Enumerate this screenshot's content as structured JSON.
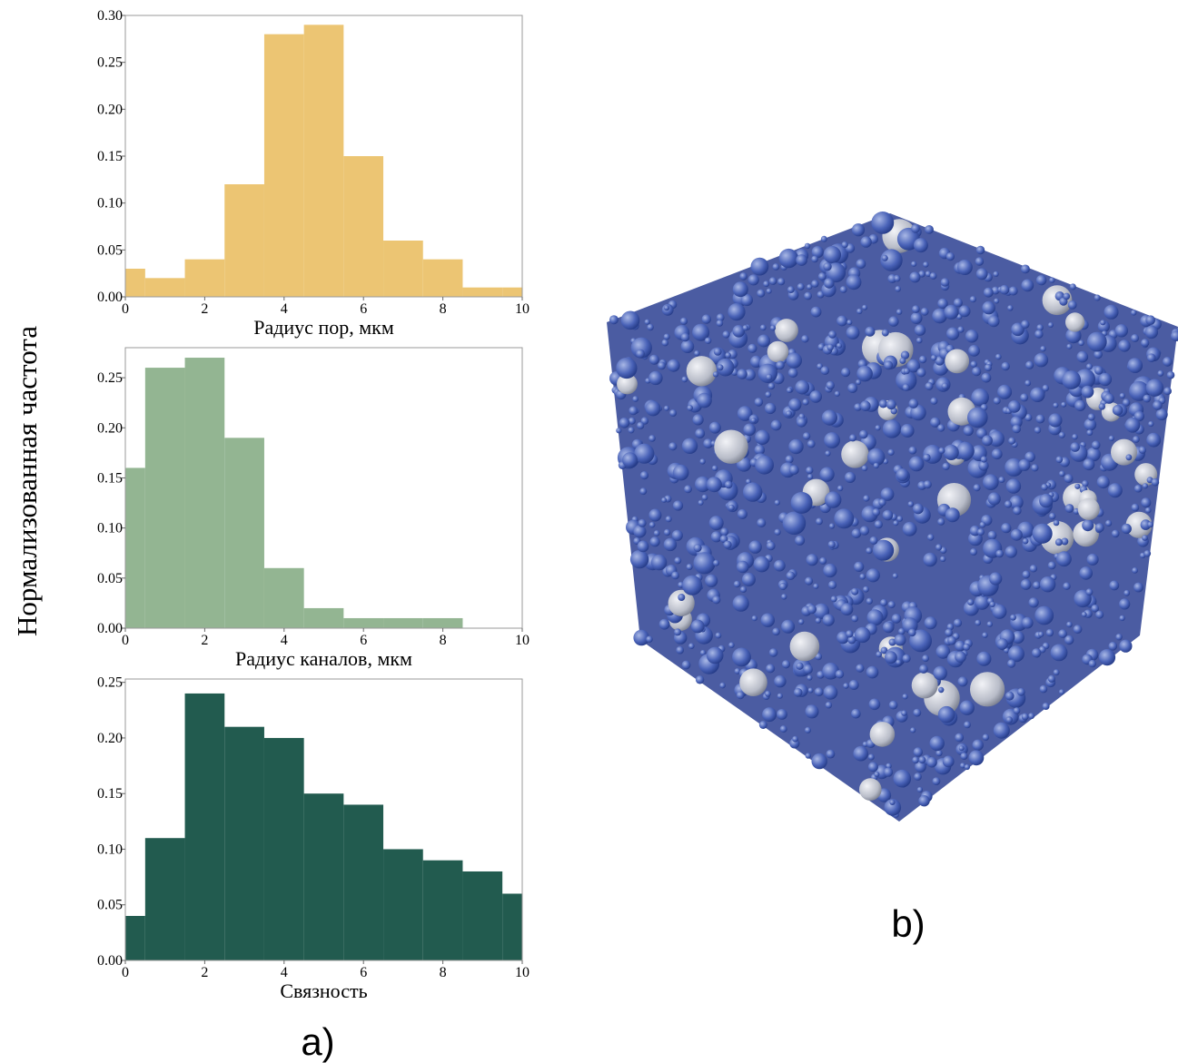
{
  "figure": {
    "ylabel": "Нормализованная частота",
    "panel_a": "a)",
    "panel_b": "b)"
  },
  "chart_data": [
    {
      "type": "histogram",
      "xlabel": "Радиус пор, мкм",
      "color": "#ecc573",
      "bins": [
        0,
        0.5,
        1.5,
        2.5,
        3.5,
        4.5,
        5.5,
        6.5,
        7.5,
        8.5,
        9.5,
        10
      ],
      "values": [
        0.03,
        0.02,
        0.04,
        0.12,
        0.28,
        0.29,
        0.15,
        0.06,
        0.04,
        0.01,
        0.01
      ],
      "xlim": [
        0,
        10
      ],
      "xticks": [
        0,
        2,
        4,
        6,
        8,
        10
      ],
      "ylim": [
        0,
        0.3
      ],
      "yticks": [
        {
          "value": 0,
          "label": "0.00"
        },
        {
          "value": 0.05,
          "label": "0.05"
        },
        {
          "value": 0.1,
          "label": "0.10"
        },
        {
          "value": 0.15,
          "label": "0.15"
        },
        {
          "value": 0.2,
          "label": "0.20"
        },
        {
          "value": 0.25,
          "label": "0.25"
        },
        {
          "value": 0.3,
          "label": "0.30"
        }
      ]
    },
    {
      "type": "histogram",
      "xlabel": "Радиус каналов, мкм",
      "color": "#93b592",
      "bins": [
        0,
        0.5,
        1.5,
        2.5,
        3.5,
        4.5,
        5.5,
        6.5,
        7.5,
        8.5,
        9.5,
        10
      ],
      "values": [
        0.16,
        0.26,
        0.27,
        0.19,
        0.06,
        0.02,
        0.01,
        0.01,
        0.01,
        0,
        0
      ],
      "xlim": [
        0,
        10
      ],
      "xticks": [
        0,
        2,
        4,
        6,
        8,
        10
      ],
      "ylim": [
        0,
        0.28
      ],
      "yticks": [
        {
          "value": 0,
          "label": "0.00"
        },
        {
          "value": 0.05,
          "label": "0.05"
        },
        {
          "value": 0.1,
          "label": "0.10"
        },
        {
          "value": 0.15,
          "label": "0.15"
        },
        {
          "value": 0.2,
          "label": "0.20"
        },
        {
          "value": 0.25,
          "label": "0.25"
        }
      ]
    },
    {
      "type": "histogram",
      "xlabel": "Связность",
      "color": "#225b4f",
      "bins": [
        0,
        0.5,
        1.5,
        2.5,
        3.5,
        4.5,
        5.5,
        6.5,
        7.5,
        8.5,
        9.5,
        10
      ],
      "values": [
        0.04,
        0.11,
        0.24,
        0.21,
        0.2,
        0.15,
        0.14,
        0.1,
        0.09,
        0.08,
        0.06
      ],
      "xlim": [
        0,
        10
      ],
      "xticks": [
        0,
        2,
        4,
        6,
        8,
        10
      ],
      "ylim": [
        0,
        0.253
      ],
      "yticks": [
        {
          "value": 0,
          "label": "0.00"
        },
        {
          "value": 0.05,
          "label": "0.05"
        },
        {
          "value": 0.1,
          "label": "0.10"
        },
        {
          "value": 0.15,
          "label": "0.15"
        },
        {
          "value": 0.2,
          "label": "0.20"
        },
        {
          "value": 0.25,
          "label": "0.25"
        }
      ]
    }
  ]
}
